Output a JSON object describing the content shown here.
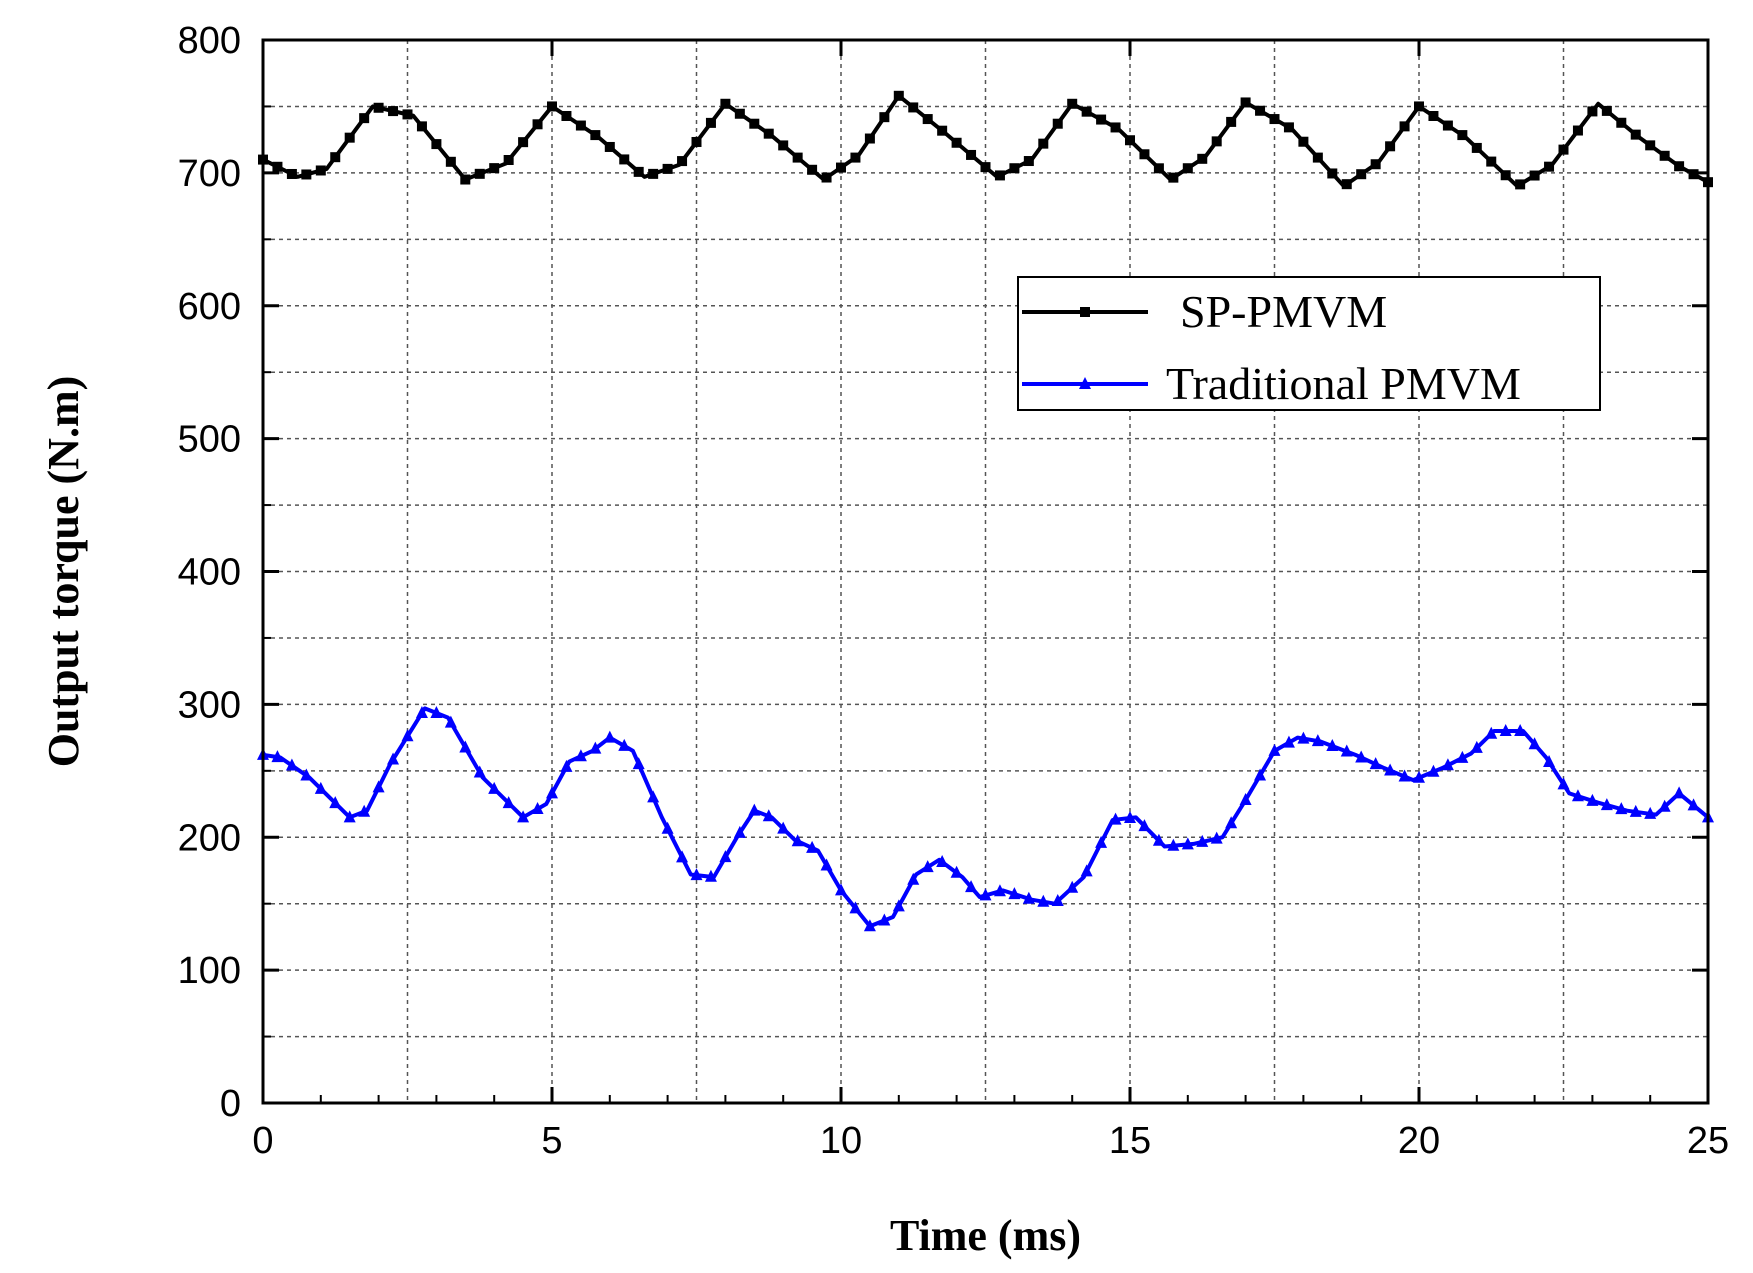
{
  "chart_data": {
    "type": "line",
    "title": "",
    "xlabel": "Time (ms)",
    "ylabel": "Output torque (N.m)",
    "xlim": [
      0,
      25
    ],
    "ylim": [
      0,
      800
    ],
    "x_ticks": [
      0,
      5,
      10,
      15,
      20,
      25
    ],
    "y_ticks": [
      0,
      100,
      200,
      300,
      400,
      500,
      600,
      700,
      800
    ],
    "x_tick_labels": [
      "0",
      "5",
      "10",
      "15",
      "20",
      "25"
    ],
    "y_tick_labels": [
      "0",
      "100",
      "200",
      "300",
      "400",
      "500",
      "600",
      "700",
      "800"
    ],
    "grid": true,
    "legend_position": "right",
    "series": [
      {
        "name": "SP-PMVM",
        "color": "#000000",
        "marker": "square",
        "x": [
          0,
          0.6,
          1.1,
          1.9,
          2.6,
          3.5,
          4.2,
          5.0,
          5.8,
          6.6,
          7.2,
          8.0,
          8.8,
          9.7,
          10.3,
          11.0,
          11.8,
          12.7,
          13.3,
          14.0,
          14.8,
          15.7,
          16.3,
          17.0,
          17.8,
          18.7,
          19.3,
          20.0,
          20.8,
          21.7,
          22.3,
          23.1,
          23.8,
          24.5,
          25.0
        ],
        "values": [
          710,
          697,
          703,
          750,
          743,
          695,
          707,
          750,
          727,
          697,
          706,
          752,
          728,
          695,
          713,
          758,
          730,
          697,
          710,
          752,
          733,
          695,
          712,
          753,
          733,
          690,
          708,
          750,
          727,
          690,
          706,
          752,
          727,
          705,
          693
        ]
      },
      {
        "name": "Traditional PMVM",
        "color": "#0000ff",
        "marker": "triangle",
        "x": [
          0,
          0.3,
          0.8,
          1.5,
          1.8,
          2.2,
          2.8,
          3.2,
          3.8,
          4.5,
          4.9,
          5.3,
          5.7,
          6.0,
          6.4,
          6.9,
          7.4,
          7.8,
          8.2,
          8.5,
          8.8,
          9.2,
          9.6,
          10.0,
          10.5,
          10.9,
          11.3,
          11.7,
          12.1,
          12.4,
          12.8,
          13.3,
          13.7,
          14.2,
          14.7,
          15.1,
          15.6,
          16.1,
          16.6,
          17.0,
          17.5,
          17.9,
          18.3,
          18.9,
          19.4,
          19.9,
          20.4,
          20.9,
          21.3,
          21.8,
          22.2,
          22.6,
          23.1,
          23.6,
          24.1,
          24.5,
          25.0
        ],
        "values": [
          262,
          260,
          245,
          215,
          220,
          255,
          297,
          290,
          245,
          215,
          225,
          257,
          265,
          275,
          265,
          215,
          172,
          170,
          200,
          220,
          215,
          198,
          190,
          160,
          133,
          140,
          172,
          183,
          170,
          155,
          160,
          153,
          150,
          170,
          213,
          215,
          193,
          195,
          200,
          228,
          265,
          275,
          272,
          262,
          252,
          243,
          252,
          263,
          280,
          280,
          260,
          233,
          226,
          220,
          217,
          233,
          215
        ]
      }
    ]
  }
}
